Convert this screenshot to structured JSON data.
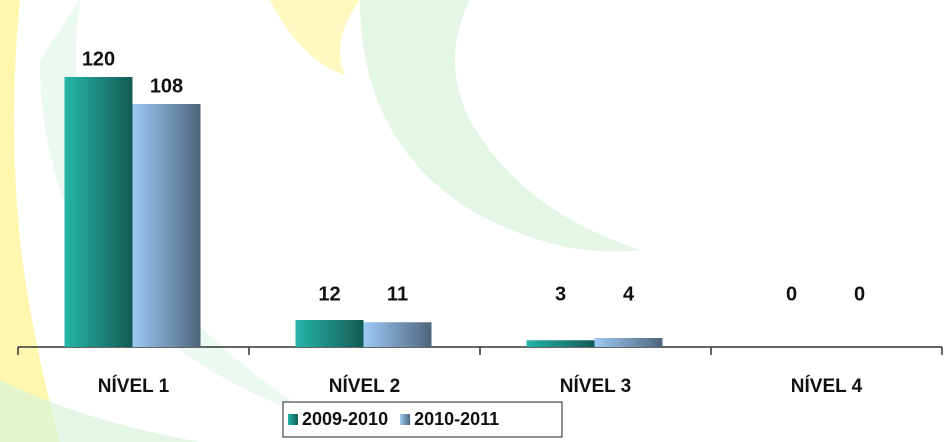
{
  "chart_data": {
    "type": "bar",
    "categories": [
      "NÍVEL 1",
      "NÍVEL 2",
      "NÍVEL 3",
      "NÍVEL 4"
    ],
    "series": [
      {
        "name": "2009-2010",
        "color": "#26b5a8",
        "values": [
          120,
          12,
          3,
          0
        ]
      },
      {
        "name": "2010-2011",
        "color": "#9ccaf6",
        "values": [
          108,
          11,
          4,
          0
        ]
      }
    ],
    "ylim": [
      0,
      120
    ],
    "grid": false,
    "legend": "bottom"
  }
}
